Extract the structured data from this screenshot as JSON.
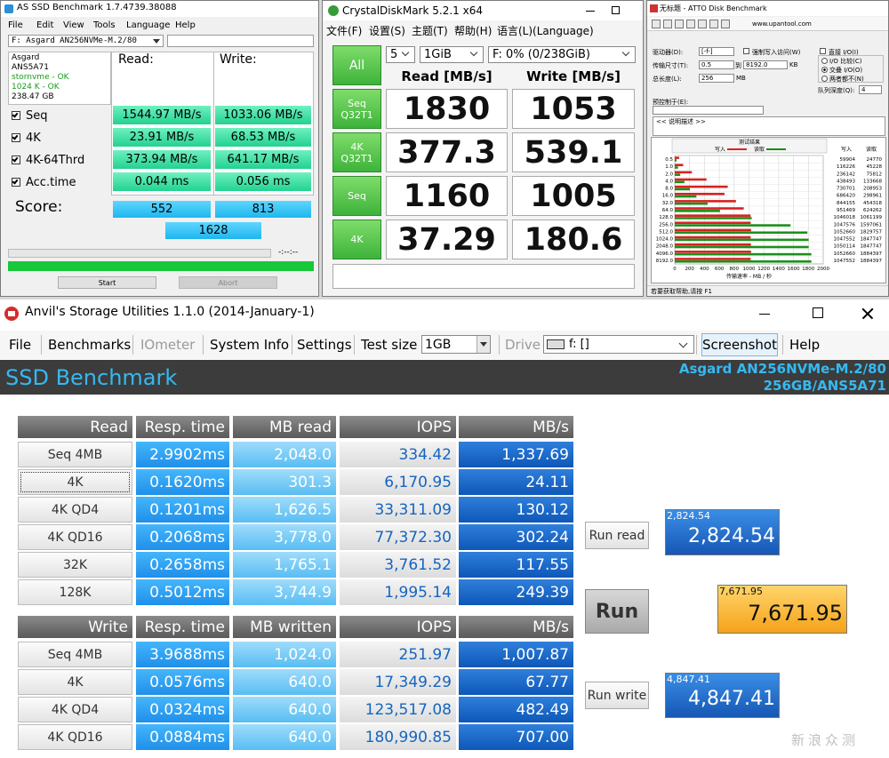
{
  "as_ssd": {
    "title": "AS SSD Benchmark 1.7.4739.38088",
    "menu": [
      "File",
      "Edit",
      "View",
      "Tools",
      "Language",
      "Help"
    ],
    "drive": "F: Asgard AN256NVMe-M.2/80",
    "info": [
      "Asgard",
      "ANS5A71",
      "stornvme - OK",
      "1024 K - OK",
      "238.47 GB"
    ],
    "read_header": "Read:",
    "write_header": "Write:",
    "rows": [
      {
        "label": "Seq",
        "read": "1544.97 MB/s",
        "write": "1033.06 MB/s"
      },
      {
        "label": "4K",
        "read": "23.91 MB/s",
        "write": "68.53 MB/s"
      },
      {
        "label": "4K-64Thrd",
        "read": "373.94 MB/s",
        "write": "641.17 MB/s"
      },
      {
        "label": "Acc.time",
        "read": "0.044 ms",
        "write": "0.056 ms"
      }
    ],
    "score_label": "Score:",
    "score_read": "552",
    "score_write": "813",
    "score_total": "1628",
    "time": "-:--:--",
    "start": "Start",
    "abort": "Abort"
  },
  "crystal": {
    "title": "CrystalDiskMark 5.2.1 x64",
    "menu": [
      "文件(F)",
      "设置(S)",
      "主题(T)",
      "帮助(H)",
      "语言(L)(Language)"
    ],
    "all": "All",
    "count": "5",
    "size": "1GiB",
    "drive": "F: 0% (0/238GiB)",
    "read_header": "Read [MB/s]",
    "write_header": "Write [MB/s]",
    "rows": [
      {
        "label": [
          "Seq",
          "Q32T1"
        ],
        "read": "1830",
        "write": "1053"
      },
      {
        "label": [
          "4K",
          "Q32T1"
        ],
        "read": "377.3",
        "write": "539.1"
      },
      {
        "label": [
          "Seq"
        ],
        "read": "1160",
        "write": "1005"
      },
      {
        "label": [
          "4K"
        ],
        "read": "37.29",
        "write": "180.6"
      }
    ]
  },
  "atto": {
    "title": "无标题 - ATTO Disk Benchmark",
    "site": "www.upantool.com",
    "drive_label": "驱动器(D):",
    "drive": "[-f-]",
    "force_write": "强制写入访问(W)",
    "transfer_label": "传输尺寸(T):",
    "transfer_from": "0.5",
    "to": "到",
    "transfer_to": "8192.0",
    "kb": "KB",
    "total_label": "总长度(L):",
    "total": "256",
    "mb": "MB",
    "direct_io": "直接 I/O(I)",
    "io_compare": "I/O 比较(C)",
    "overlapped": "交叠 I/O(O)",
    "neither": "两者都不(N)",
    "queue_label": "队列深度(Q):",
    "queue": "4",
    "control_label": "预控制于(E):",
    "description": "<< 说明描述 >>",
    "results_title": "测试结果",
    "legend_write": "写入",
    "legend_read": "读取",
    "col_write": "写入",
    "col_read": "读取",
    "rows": [
      {
        "size": "0.5",
        "write": 59904,
        "read": 24770
      },
      {
        "size": "1.0",
        "write": 116226,
        "read": 45228
      },
      {
        "size": "2.0",
        "write": 236142,
        "read": 75812
      },
      {
        "size": "4.0",
        "write": 438493,
        "read": 133668
      },
      {
        "size": "8.0",
        "write": 730701,
        "read": 208953
      },
      {
        "size": "16.0",
        "write": 686420,
        "read": 298961
      },
      {
        "size": "32.0",
        "write": 844155,
        "read": 454318
      },
      {
        "size": "64.0",
        "write": 951469,
        "read": 624262
      },
      {
        "size": "128.0",
        "write": 1046018,
        "read": 1061199
      },
      {
        "size": "256.0",
        "write": 1047576,
        "read": 1597061
      },
      {
        "size": "512.0",
        "write": 1052660,
        "read": 1829757
      },
      {
        "size": "1024.0",
        "write": 1047552,
        "read": 1847747
      },
      {
        "size": "2048.0",
        "write": 1050114,
        "read": 1847747
      },
      {
        "size": "4096.0",
        "write": 1052660,
        "read": 1884397
      },
      {
        "size": "8192.0",
        "write": 1047552,
        "read": 1884397
      }
    ],
    "xlim": [
      0,
      2000
    ],
    "xticks": [
      0,
      200,
      400,
      600,
      800,
      1000,
      1200,
      1400,
      1600,
      1800,
      2000
    ],
    "axis_title": "传输速率 - MB / 秒",
    "status": "若要获取帮助,请按 F1"
  },
  "anvil": {
    "title": "Anvil's Storage Utilities 1.1.0 (2014-January-1)",
    "menu": {
      "file": "File",
      "benchmarks": "Benchmarks",
      "iometer": "IOmeter",
      "system_info": "System Info",
      "settings": "Settings",
      "test_size": "Test size",
      "test_size_value": "1GB",
      "drive": "Drive",
      "drive_value": "f: []",
      "screenshot": "Screenshot",
      "help": "Help"
    },
    "section": "SSD Benchmark",
    "device": "Asgard AN256NVMe-M.2/80",
    "device_info": "256GB/ANS5A71",
    "read_table": {
      "headers": [
        "Read",
        "Resp. time",
        "MB read",
        "IOPS",
        "MB/s"
      ],
      "rows": [
        [
          "Seq 4MB",
          "2.9902ms",
          "2,048.0",
          "334.42",
          "1,337.69"
        ],
        [
          "4K",
          "0.1620ms",
          "301.3",
          "6,170.95",
          "24.11"
        ],
        [
          "4K QD4",
          "0.1201ms",
          "1,626.5",
          "33,311.09",
          "130.12"
        ],
        [
          "4K QD16",
          "0.2068ms",
          "3,778.0",
          "77,372.30",
          "302.24"
        ],
        [
          "32K",
          "0.2658ms",
          "1,765.1",
          "3,761.52",
          "117.55"
        ],
        [
          "128K",
          "0.5012ms",
          "3,744.9",
          "1,995.14",
          "249.39"
        ]
      ]
    },
    "write_table": {
      "headers": [
        "Write",
        "Resp. time",
        "MB written",
        "IOPS",
        "MB/s"
      ],
      "rows": [
        [
          "Seq 4MB",
          "3.9688ms",
          "1,024.0",
          "251.97",
          "1,007.87"
        ],
        [
          "4K",
          "0.0576ms",
          "640.0",
          "17,349.29",
          "67.77"
        ],
        [
          "4K QD4",
          "0.0324ms",
          "640.0",
          "123,517.08",
          "482.49"
        ],
        [
          "4K QD16",
          "0.0884ms",
          "640.0",
          "180,990.85",
          "707.00"
        ]
      ]
    },
    "run_read": "Run read",
    "run": "Run",
    "run_write": "Run write",
    "read_score": "2,824.54",
    "total_score": "7,671.95",
    "write_score": "4,847.41",
    "watermark": "新浪众测"
  }
}
